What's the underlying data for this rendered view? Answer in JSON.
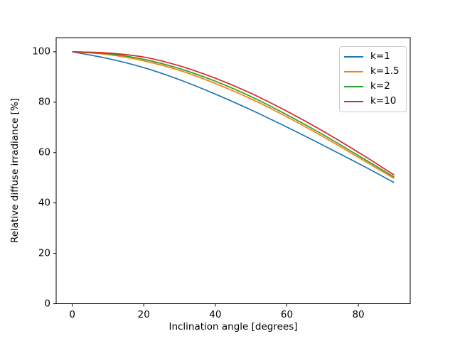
{
  "figure": {
    "background_color": "#ffffff",
    "frame_color": "#000000",
    "text_color": "#000000"
  },
  "chart_data": {
    "type": "line",
    "title": "",
    "xlabel": "Inclination angle [degrees]",
    "ylabel": "Relative diffuse irradiance [%]",
    "x": [
      0,
      10,
      20,
      30,
      40,
      50,
      60,
      70,
      80,
      90
    ],
    "series": [
      {
        "name": "k=1",
        "color": "#1f77b4",
        "values": [
          100,
          97.3,
          93.7,
          88.9,
          83.2,
          76.9,
          70.1,
          63.0,
          55.7,
          48.1
        ]
      },
      {
        "name": "k=1.5",
        "color": "#ff7f0e",
        "values": [
          100,
          98.9,
          96.4,
          92.6,
          87.4,
          81.3,
          74.2,
          66.4,
          58.1,
          49.7
        ]
      },
      {
        "name": "k=2",
        "color": "#2ca02c",
        "values": [
          100,
          99.2,
          97.0,
          93.3,
          88.3,
          82.2,
          75.0,
          67.2,
          58.8,
          50.3
        ]
      },
      {
        "name": "k=10",
        "color": "#d62728",
        "values": [
          100,
          99.5,
          97.9,
          94.4,
          89.5,
          83.5,
          76.4,
          68.6,
          60.1,
          51.1
        ]
      }
    ],
    "xlim": [
      -4.5,
      94.5
    ],
    "ylim": [
      0,
      105.6
    ],
    "xticks": [
      0,
      20,
      40,
      60,
      80
    ],
    "yticks": [
      0,
      20,
      40,
      60,
      80,
      100
    ],
    "grid": false,
    "legend": {
      "position": "upper right",
      "entries": [
        "k=1",
        "k=1.5",
        "k=2",
        "k=10"
      ]
    }
  }
}
